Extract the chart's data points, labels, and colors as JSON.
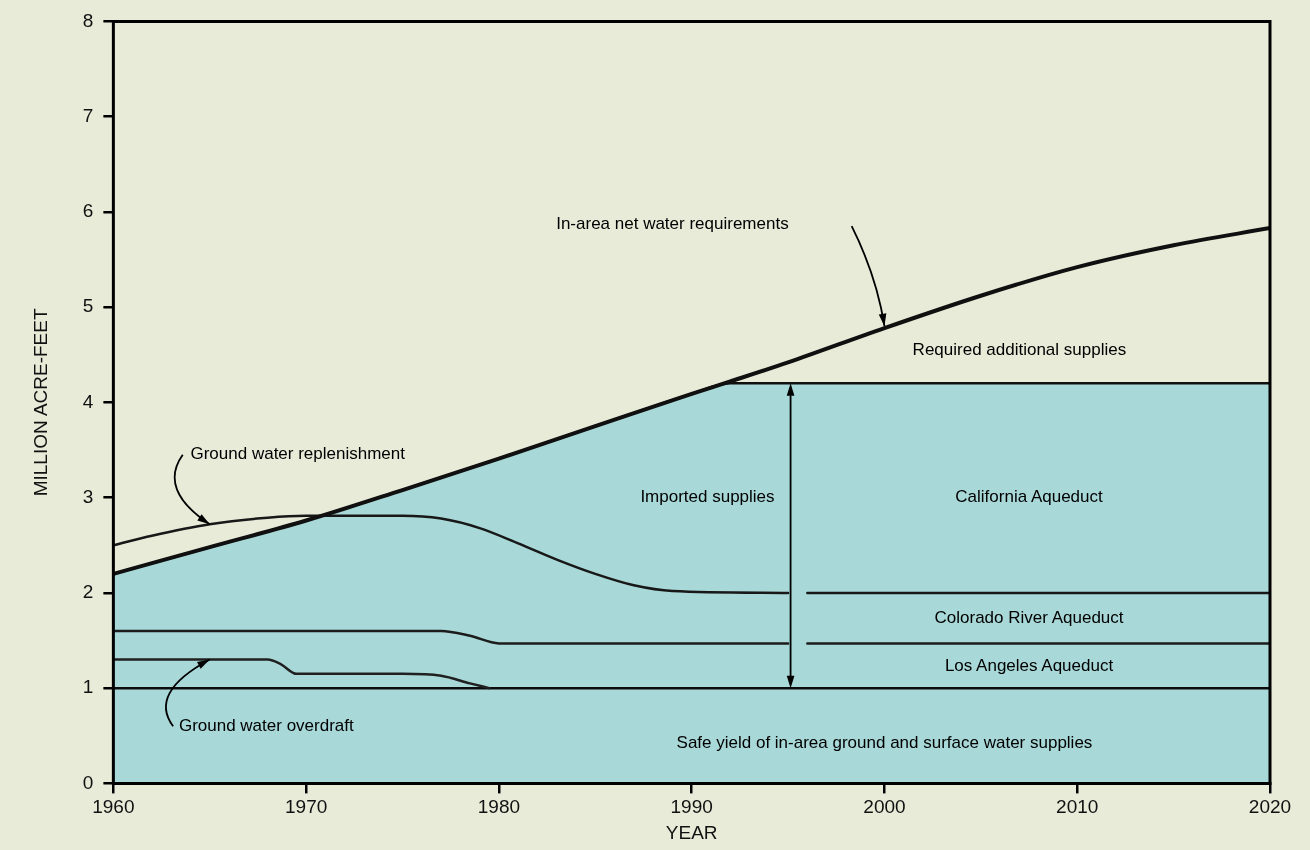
{
  "chart_data": {
    "type": "line",
    "xlabel": "YEAR",
    "ylabel": "MILLION ACRE-FEET",
    "xlim": [
      1960,
      2020
    ],
    "xticks": [
      1960,
      1970,
      1980,
      1990,
      2000,
      2010,
      2020
    ],
    "ylim": [
      0,
      8
    ],
    "yticks": [
      0,
      1,
      2,
      3,
      4,
      5,
      6,
      7,
      8
    ],
    "grid": false,
    "legend": false,
    "marker": "none",
    "line_style": "solid",
    "series": [
      {
        "type": "area",
        "color": "#a8d8d8",
        "x": [
          1960,
          1965,
          1970,
          1975,
          1980,
          1985,
          1990,
          1992,
          2000,
          2010,
          2020
        ],
        "values": [
          2.2,
          2.48,
          2.76,
          3.08,
          3.41,
          3.75,
          4.09,
          4.2,
          4.2,
          4.2,
          4.2
        ]
      },
      {
        "color": "#101010",
        "x": [
          1960,
          1965,
          1970,
          1975,
          1980,
          1985,
          1990,
          1992,
          1995,
          2000,
          2005,
          2010,
          2015,
          2020
        ],
        "values": [
          2.2,
          2.48,
          2.76,
          3.08,
          3.41,
          3.75,
          4.09,
          4.22,
          4.42,
          4.78,
          5.12,
          5.42,
          5.65,
          5.83
        ]
      },
      {
        "color": "#181818",
        "x": [
          1960,
          1962,
          1965,
          1968,
          1970,
          1975,
          1977,
          1979,
          1981,
          1983,
          1985,
          1987,
          1989,
          1995,
          1995.5,
          1996,
          2020
        ],
        "values": [
          2.5,
          2.6,
          2.72,
          2.79,
          2.81,
          2.81,
          2.78,
          2.68,
          2.52,
          2.35,
          2.2,
          2.08,
          2.02,
          2.0,
          null,
          2.0,
          2.0
        ]
      },
      {
        "color": "#1c1c1c",
        "x": [
          1960,
          1970,
          1977,
          1978.5,
          1980,
          1995,
          1995.5,
          1996,
          2020
        ],
        "values": [
          1.6,
          1.6,
          1.6,
          1.55,
          1.47,
          1.47,
          null,
          1.47,
          1.47
        ]
      },
      {
        "color": "#202020",
        "x": [
          1960,
          1968,
          1968.7,
          1969.5,
          1975,
          1977,
          1978.5,
          1979.5
        ],
        "values": [
          1.3,
          1.3,
          1.25,
          1.15,
          1.15,
          1.13,
          1.05,
          1.0
        ]
      },
      {
        "color": "#0c0c0c",
        "x": [
          1960,
          2020
        ],
        "values": [
          1.0,
          1.0
        ]
      }
    ],
    "annotations": [
      "In-area net water requirements",
      "Required additional supplies",
      "Imported supplies",
      "California Aqueduct",
      "Colorado River Aqueduct",
      "Los Angeles Aqueduct",
      {
        "text": "Ground water replenishment",
        "x": 1965,
        "y": 2.72
      },
      {
        "text": "Ground water overdraft",
        "x": 1965,
        "y": 1.3
      },
      "Safe yield of in-area ground and surface water supplies"
    ]
  }
}
